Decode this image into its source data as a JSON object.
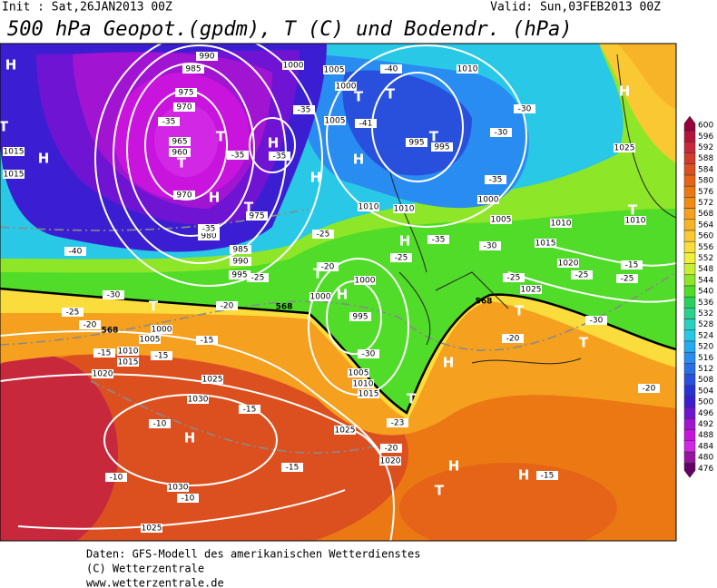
{
  "header": {
    "init": "Init : Sat,26JAN2013 00Z",
    "valid": "Valid: Sun,03FEB2013 00Z",
    "title": "500 hPa Geopot.(gpdm), T (C) und Bodendr. (hPa)"
  },
  "map": {
    "pressure_labels": [
      990,
      985,
      975,
      970,
      965,
      960,
      970,
      975,
      980,
      985,
      990,
      995,
      1000,
      1005,
      1000,
      1005,
      995,
      995,
      1000,
      1005,
      1010,
      1010,
      1015,
      1020,
      1025,
      1025,
      1010,
      1015,
      1015,
      1010,
      1010,
      1000,
      1000,
      995,
      1005,
      1010,
      1015,
      1025,
      1020,
      1030,
      1030,
      1025,
      1025,
      1020,
      1015,
      1010,
      1005,
      1000
    ],
    "temperature_labels": [
      -40,
      -30,
      -30,
      -35,
      -25,
      -25,
      -20,
      -25,
      -20,
      -25,
      -30,
      -20,
      -15,
      -15,
      -15,
      -10,
      -10,
      -10,
      -15,
      -15,
      -20,
      -23,
      -20,
      -30,
      -25,
      -20,
      -15,
      -40,
      -35,
      -35,
      -35,
      -35,
      -41,
      -35,
      -30,
      -25,
      -25,
      -15,
      -35,
      -30
    ],
    "contour_labels": [
      568,
      568,
      568
    ],
    "centers": [
      "H",
      "T",
      "H",
      "T",
      "T",
      "H",
      "T",
      "T",
      "T",
      "H",
      "H",
      "T",
      "H",
      "T",
      "H",
      "T",
      "H",
      "T",
      "H",
      "H",
      "T",
      "H",
      "T",
      "H",
      "H",
      "T",
      "T"
    ]
  },
  "colorbar": {
    "ticks": [
      600,
      596,
      592,
      588,
      584,
      580,
      576,
      572,
      568,
      564,
      560,
      556,
      552,
      548,
      544,
      540,
      536,
      532,
      528,
      524,
      520,
      516,
      512,
      508,
      504,
      500,
      496,
      492,
      488,
      484,
      480,
      476
    ],
    "colors": [
      "#96003c",
      "#b4143c",
      "#c8283c",
      "#d23c28",
      "#dc5020",
      "#e66418",
      "#ec7814",
      "#f08c14",
      "#f5a01e",
      "#f8b428",
      "#fac832",
      "#fadc3c",
      "#f0f03c",
      "#c8ef32",
      "#8ee628",
      "#50dc28",
      "#28d25a",
      "#28d28c",
      "#28d2be",
      "#28c8e6",
      "#28aaf0",
      "#288cf0",
      "#286ee6",
      "#2850dc",
      "#2832d2",
      "#3c1ed2",
      "#6e14d2",
      "#a014d2",
      "#c814dc",
      "#d228e6",
      "#9614a0",
      "#640064"
    ]
  },
  "footer": {
    "source": "Daten: GFS-Modell des amerikanischen Wetterdienstes",
    "copyright": "(C) Wetterzentrale",
    "url": "www.wetterzentrale.de"
  }
}
